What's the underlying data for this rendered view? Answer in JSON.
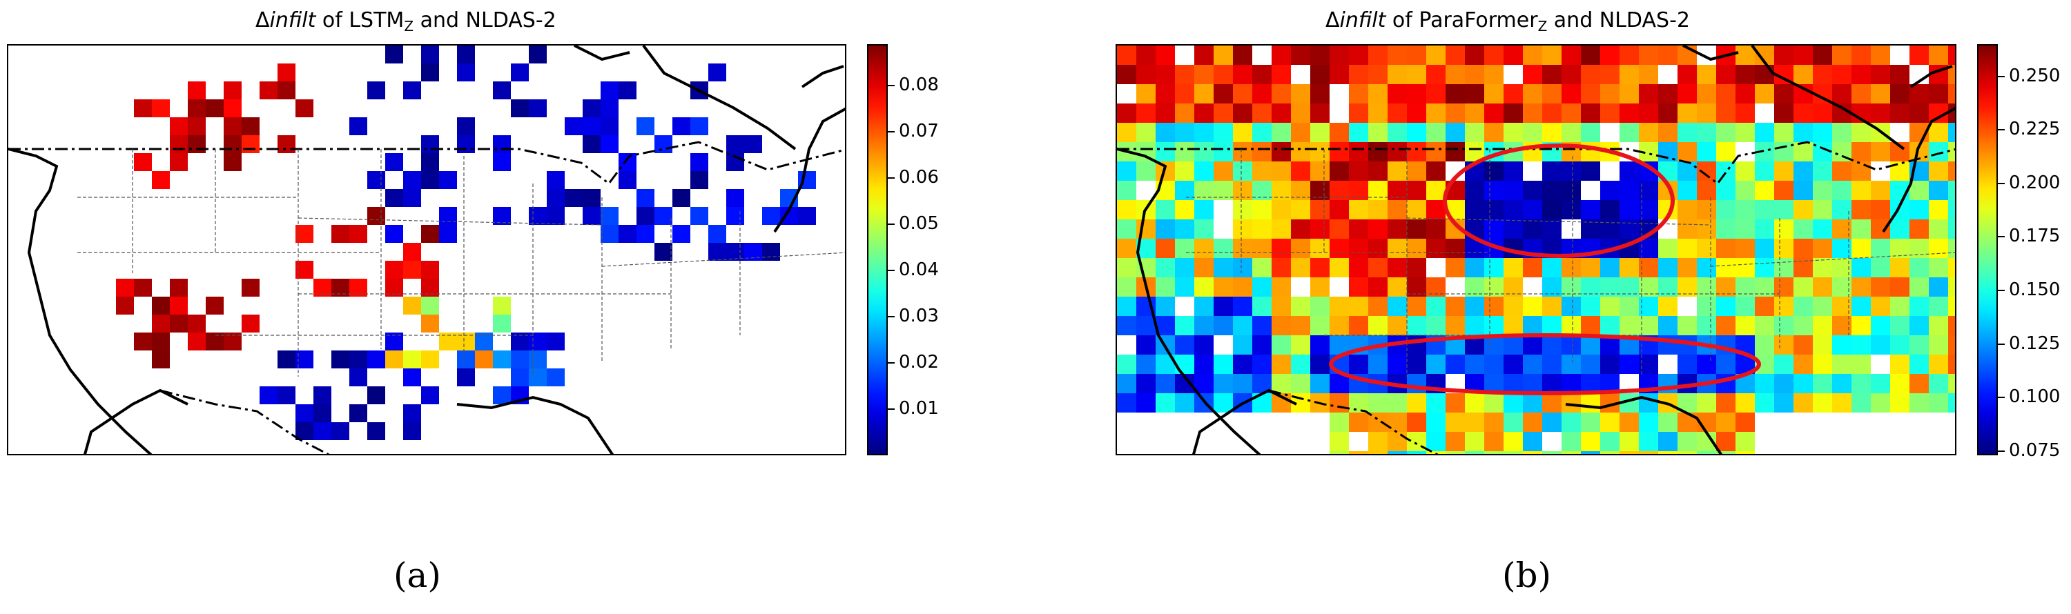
{
  "panels": [
    {
      "title_prefix": "Δ",
      "title_var": "infilt",
      "title_mid": " of LSTM",
      "title_sub": "Z",
      "title_suffix": " and NLDAS-2",
      "label": "(a)",
      "colorbar": {
        "ticks": [
          "0.08",
          "0.07",
          "0.06",
          "0.05",
          "0.04",
          "0.03",
          "0.02",
          "0.01"
        ],
        "tick_values": [
          0.08,
          0.07,
          0.06,
          0.05,
          0.04,
          0.03,
          0.02,
          0.01
        ],
        "vmin": 0.0,
        "vmax": 0.089,
        "colormap": "jet"
      }
    },
    {
      "title_prefix": "Δ",
      "title_var": "infilt",
      "title_mid": " of ParaFormer",
      "title_sub": "Z",
      "title_suffix": " and NLDAS-2",
      "label": "(b)",
      "colorbar": {
        "ticks": [
          "0.250",
          "0.225",
          "0.200",
          "0.175",
          "0.150",
          "0.125",
          "0.100",
          "0.075"
        ],
        "tick_values": [
          0.25,
          0.225,
          0.2,
          0.175,
          0.15,
          0.125,
          0.1,
          0.075
        ],
        "vmin": 0.073,
        "vmax": 0.265,
        "colormap": "jet"
      },
      "highlight_color": "#e8141c"
    }
  ],
  "colormap": [
    "#00007f",
    "#0000ff",
    "#007fff",
    "#00ffff",
    "#7fff7f",
    "#ffff00",
    "#ff7f00",
    "#ff0000",
    "#7f0000"
  ]
}
